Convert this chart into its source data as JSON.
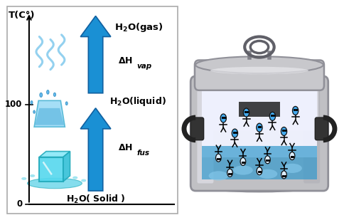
{
  "title": "T(C°)",
  "label_gas": "H₂O(gas)",
  "label_liquid": "H₂O(liquid)",
  "label_solid": "H₂O( Solid )",
  "tick_100": "100",
  "tick_0": "0",
  "arrow_color": "#1a90d4",
  "arrow_edge": "#1060a0",
  "squiggle_color": "#88ccee",
  "ice_face": "#55d8ee",
  "ice_edge": "#22aabb",
  "puddle_color": "#44cce4",
  "pot_body": "#c8c8cc",
  "pot_dark": "#888890",
  "pot_interior_bg": "#e8eeff",
  "water_bg": "#66b8e8",
  "molecule_color": "#44aaee",
  "molecule_inv": "#ddeeff",
  "panel_border": "#888888"
}
